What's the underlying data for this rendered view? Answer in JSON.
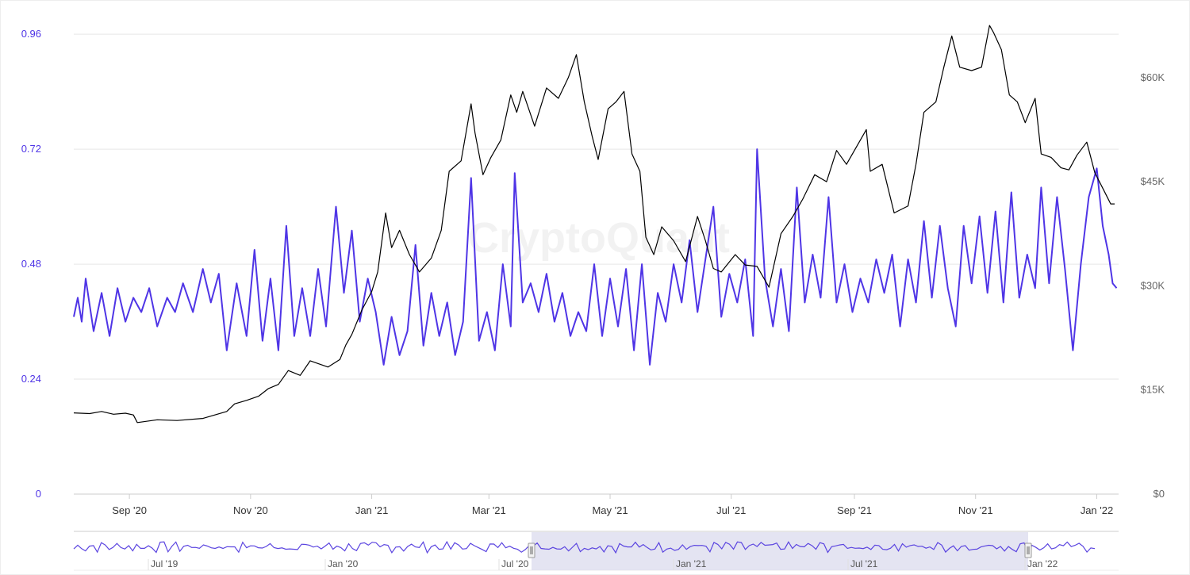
{
  "watermark": "CryptoQuant",
  "colors": {
    "ratio_line": "#4f35e6",
    "price_line": "#000000",
    "left_axis_text": "#4f35e6",
    "right_axis_text": "#666666",
    "grid": "#e6e6e6",
    "navigator_fill": "#d9d9ec",
    "navigator_line": "#5b45e0"
  },
  "chart_data": {
    "type": "line",
    "title": "",
    "xlabel": "",
    "y_left": {
      "range": [
        0,
        1.0
      ],
      "ticks": [
        "0",
        "0.24",
        "0.48",
        "0.72",
        "0.96"
      ],
      "tick_values": [
        0,
        0.24,
        0.48,
        0.72,
        0.96
      ]
    },
    "y_right": {
      "range": [
        0,
        69000
      ],
      "ticks": [
        "$0",
        "$15K",
        "$30K",
        "$45K",
        "$60K"
      ],
      "tick_values": [
        0,
        15000,
        30000,
        45000,
        60000
      ]
    },
    "x_range": [
      "2020-08-04",
      "2022-01-12"
    ],
    "x_ticks": [
      {
        "label": "Sep '20",
        "date": "2020-09-01"
      },
      {
        "label": "Nov '20",
        "date": "2020-11-01"
      },
      {
        "label": "Jan '21",
        "date": "2021-01-01"
      },
      {
        "label": "Mar '21",
        "date": "2021-03-01"
      },
      {
        "label": "May '21",
        "date": "2021-05-01"
      },
      {
        "label": "Jul '21",
        "date": "2021-07-01"
      },
      {
        "label": "Sep '21",
        "date": "2021-09-01"
      },
      {
        "label": "Nov '21",
        "date": "2021-11-01"
      },
      {
        "label": "Jan '22",
        "date": "2022-01-01"
      }
    ],
    "grid": true,
    "legend": "none",
    "series": [
      {
        "axis": "left",
        "points": [
          [
            "2020-08-04",
            0.37
          ],
          [
            "2020-08-06",
            0.41
          ],
          [
            "2020-08-08",
            0.36
          ],
          [
            "2020-08-10",
            0.45
          ],
          [
            "2020-08-14",
            0.34
          ],
          [
            "2020-08-18",
            0.42
          ],
          [
            "2020-08-22",
            0.33
          ],
          [
            "2020-08-26",
            0.43
          ],
          [
            "2020-08-30",
            0.36
          ],
          [
            "2020-09-03",
            0.41
          ],
          [
            "2020-09-07",
            0.38
          ],
          [
            "2020-09-11",
            0.43
          ],
          [
            "2020-09-15",
            0.35
          ],
          [
            "2020-09-20",
            0.41
          ],
          [
            "2020-09-24",
            0.38
          ],
          [
            "2020-09-28",
            0.44
          ],
          [
            "2020-10-03",
            0.38
          ],
          [
            "2020-10-08",
            0.47
          ],
          [
            "2020-10-12",
            0.4
          ],
          [
            "2020-10-16",
            0.46
          ],
          [
            "2020-10-20",
            0.3
          ],
          [
            "2020-10-25",
            0.44
          ],
          [
            "2020-10-30",
            0.33
          ],
          [
            "2020-11-03",
            0.51
          ],
          [
            "2020-11-07",
            0.32
          ],
          [
            "2020-11-11",
            0.45
          ],
          [
            "2020-11-15",
            0.3
          ],
          [
            "2020-11-19",
            0.56
          ],
          [
            "2020-11-23",
            0.33
          ],
          [
            "2020-11-27",
            0.43
          ],
          [
            "2020-12-01",
            0.33
          ],
          [
            "2020-12-05",
            0.47
          ],
          [
            "2020-12-09",
            0.35
          ],
          [
            "2020-12-14",
            0.6
          ],
          [
            "2020-12-18",
            0.42
          ],
          [
            "2020-12-22",
            0.55
          ],
          [
            "2020-12-26",
            0.36
          ],
          [
            "2020-12-30",
            0.45
          ],
          [
            "2021-01-03",
            0.38
          ],
          [
            "2021-01-07",
            0.27
          ],
          [
            "2021-01-11",
            0.37
          ],
          [
            "2021-01-15",
            0.29
          ],
          [
            "2021-01-19",
            0.34
          ],
          [
            "2021-01-23",
            0.52
          ],
          [
            "2021-01-27",
            0.31
          ],
          [
            "2021-01-31",
            0.42
          ],
          [
            "2021-02-04",
            0.33
          ],
          [
            "2021-02-08",
            0.4
          ],
          [
            "2021-02-12",
            0.29
          ],
          [
            "2021-02-16",
            0.36
          ],
          [
            "2021-02-20",
            0.66
          ],
          [
            "2021-02-24",
            0.32
          ],
          [
            "2021-02-28",
            0.38
          ],
          [
            "2021-03-04",
            0.3
          ],
          [
            "2021-03-08",
            0.48
          ],
          [
            "2021-03-12",
            0.35
          ],
          [
            "2021-03-14",
            0.67
          ],
          [
            "2021-03-18",
            0.4
          ],
          [
            "2021-03-22",
            0.44
          ],
          [
            "2021-03-26",
            0.38
          ],
          [
            "2021-03-30",
            0.46
          ],
          [
            "2021-04-03",
            0.36
          ],
          [
            "2021-04-07",
            0.42
          ],
          [
            "2021-04-11",
            0.33
          ],
          [
            "2021-04-15",
            0.38
          ],
          [
            "2021-04-19",
            0.34
          ],
          [
            "2021-04-23",
            0.48
          ],
          [
            "2021-04-27",
            0.33
          ],
          [
            "2021-05-01",
            0.45
          ],
          [
            "2021-05-05",
            0.35
          ],
          [
            "2021-05-09",
            0.47
          ],
          [
            "2021-05-13",
            0.3
          ],
          [
            "2021-05-17",
            0.48
          ],
          [
            "2021-05-21",
            0.27
          ],
          [
            "2021-05-25",
            0.42
          ],
          [
            "2021-05-29",
            0.36
          ],
          [
            "2021-06-02",
            0.48
          ],
          [
            "2021-06-06",
            0.4
          ],
          [
            "2021-06-10",
            0.53
          ],
          [
            "2021-06-14",
            0.38
          ],
          [
            "2021-06-18",
            0.49
          ],
          [
            "2021-06-22",
            0.6
          ],
          [
            "2021-06-26",
            0.37
          ],
          [
            "2021-06-30",
            0.46
          ],
          [
            "2021-07-04",
            0.4
          ],
          [
            "2021-07-08",
            0.49
          ],
          [
            "2021-07-12",
            0.33
          ],
          [
            "2021-07-14",
            0.72
          ],
          [
            "2021-07-18",
            0.45
          ],
          [
            "2021-07-22",
            0.35
          ],
          [
            "2021-07-26",
            0.47
          ],
          [
            "2021-07-30",
            0.34
          ],
          [
            "2021-08-03",
            0.64
          ],
          [
            "2021-08-07",
            0.4
          ],
          [
            "2021-08-11",
            0.5
          ],
          [
            "2021-08-15",
            0.41
          ],
          [
            "2021-08-19",
            0.62
          ],
          [
            "2021-08-23",
            0.4
          ],
          [
            "2021-08-27",
            0.48
          ],
          [
            "2021-08-31",
            0.38
          ],
          [
            "2021-09-04",
            0.45
          ],
          [
            "2021-09-08",
            0.4
          ],
          [
            "2021-09-12",
            0.49
          ],
          [
            "2021-09-16",
            0.42
          ],
          [
            "2021-09-20",
            0.5
          ],
          [
            "2021-09-24",
            0.35
          ],
          [
            "2021-09-28",
            0.49
          ],
          [
            "2021-10-02",
            0.4
          ],
          [
            "2021-10-06",
            0.57
          ],
          [
            "2021-10-10",
            0.41
          ],
          [
            "2021-10-14",
            0.56
          ],
          [
            "2021-10-18",
            0.43
          ],
          [
            "2021-10-22",
            0.35
          ],
          [
            "2021-10-26",
            0.56
          ],
          [
            "2021-10-30",
            0.44
          ],
          [
            "2021-11-03",
            0.58
          ],
          [
            "2021-11-07",
            0.42
          ],
          [
            "2021-11-11",
            0.59
          ],
          [
            "2021-11-15",
            0.4
          ],
          [
            "2021-11-19",
            0.63
          ],
          [
            "2021-11-23",
            0.41
          ],
          [
            "2021-11-27",
            0.5
          ],
          [
            "2021-12-01",
            0.43
          ],
          [
            "2021-12-04",
            0.64
          ],
          [
            "2021-12-08",
            0.44
          ],
          [
            "2021-12-12",
            0.62
          ],
          [
            "2021-12-16",
            0.47
          ],
          [
            "2021-12-20",
            0.3
          ],
          [
            "2021-12-24",
            0.48
          ],
          [
            "2021-12-28",
            0.62
          ],
          [
            "2022-01-01",
            0.68
          ],
          [
            "2022-01-04",
            0.56
          ],
          [
            "2022-01-07",
            0.5
          ],
          [
            "2022-01-09",
            0.44
          ],
          [
            "2022-01-11",
            0.43
          ]
        ]
      },
      {
        "axis": "right",
        "points": [
          [
            "2020-08-04",
            11700
          ],
          [
            "2020-08-12",
            11600
          ],
          [
            "2020-08-18",
            11900
          ],
          [
            "2020-08-24",
            11500
          ],
          [
            "2020-08-30",
            11650
          ],
          [
            "2020-09-03",
            11400
          ],
          [
            "2020-09-05",
            10300
          ],
          [
            "2020-09-15",
            10700
          ],
          [
            "2020-09-25",
            10600
          ],
          [
            "2020-10-08",
            10900
          ],
          [
            "2020-10-14",
            11400
          ],
          [
            "2020-10-20",
            11900
          ],
          [
            "2020-10-24",
            13000
          ],
          [
            "2020-10-30",
            13500
          ],
          [
            "2020-11-05",
            14100
          ],
          [
            "2020-11-10",
            15200
          ],
          [
            "2020-11-15",
            15800
          ],
          [
            "2020-11-20",
            17800
          ],
          [
            "2020-11-26",
            17100
          ],
          [
            "2020-12-01",
            19200
          ],
          [
            "2020-12-10",
            18300
          ],
          [
            "2020-12-16",
            19400
          ],
          [
            "2020-12-19",
            21500
          ],
          [
            "2020-12-22",
            23000
          ],
          [
            "2020-12-27",
            26500
          ],
          [
            "2021-01-01",
            29200
          ],
          [
            "2021-01-04",
            32000
          ],
          [
            "2021-01-08",
            40500
          ],
          [
            "2021-01-11",
            35500
          ],
          [
            "2021-01-15",
            38000
          ],
          [
            "2021-01-20",
            34500
          ],
          [
            "2021-01-25",
            32000
          ],
          [
            "2021-01-31",
            34000
          ],
          [
            "2021-02-05",
            38000
          ],
          [
            "2021-02-09",
            46500
          ],
          [
            "2021-02-15",
            48000
          ],
          [
            "2021-02-20",
            56200
          ],
          [
            "2021-02-22",
            52000
          ],
          [
            "2021-02-26",
            46000
          ],
          [
            "2021-03-02",
            48500
          ],
          [
            "2021-03-07",
            51000
          ],
          [
            "2021-03-12",
            57500
          ],
          [
            "2021-03-15",
            55000
          ],
          [
            "2021-03-18",
            58000
          ],
          [
            "2021-03-24",
            53000
          ],
          [
            "2021-03-30",
            58500
          ],
          [
            "2021-04-05",
            57000
          ],
          [
            "2021-04-10",
            60000
          ],
          [
            "2021-04-14",
            63300
          ],
          [
            "2021-04-18",
            56500
          ],
          [
            "2021-04-22",
            51500
          ],
          [
            "2021-04-25",
            48200
          ],
          [
            "2021-04-30",
            55500
          ],
          [
            "2021-05-04",
            56500
          ],
          [
            "2021-05-08",
            58000
          ],
          [
            "2021-05-12",
            49000
          ],
          [
            "2021-05-16",
            46500
          ],
          [
            "2021-05-19",
            37000
          ],
          [
            "2021-05-23",
            34500
          ],
          [
            "2021-05-27",
            38500
          ],
          [
            "2021-06-02",
            36500
          ],
          [
            "2021-06-08",
            33500
          ],
          [
            "2021-06-14",
            40000
          ],
          [
            "2021-06-18",
            36500
          ],
          [
            "2021-06-22",
            32500
          ],
          [
            "2021-06-26",
            32000
          ],
          [
            "2021-07-03",
            34500
          ],
          [
            "2021-07-08",
            33000
          ],
          [
            "2021-07-14",
            32800
          ],
          [
            "2021-07-20",
            29800
          ],
          [
            "2021-07-26",
            37500
          ],
          [
            "2021-08-01",
            40000
          ],
          [
            "2021-08-06",
            42500
          ],
          [
            "2021-08-12",
            46000
          ],
          [
            "2021-08-18",
            45000
          ],
          [
            "2021-08-23",
            49500
          ],
          [
            "2021-08-28",
            47500
          ],
          [
            "2021-09-03",
            50500
          ],
          [
            "2021-09-07",
            52500
          ],
          [
            "2021-09-09",
            46500
          ],
          [
            "2021-09-15",
            47500
          ],
          [
            "2021-09-21",
            40500
          ],
          [
            "2021-09-28",
            41500
          ],
          [
            "2021-10-02",
            47500
          ],
          [
            "2021-10-06",
            55000
          ],
          [
            "2021-10-12",
            56500
          ],
          [
            "2021-10-16",
            61500
          ],
          [
            "2021-10-20",
            66000
          ],
          [
            "2021-10-24",
            61500
          ],
          [
            "2021-10-30",
            61000
          ],
          [
            "2021-11-04",
            61500
          ],
          [
            "2021-11-08",
            67500
          ],
          [
            "2021-11-10",
            66500
          ],
          [
            "2021-11-14",
            64000
          ],
          [
            "2021-11-18",
            57500
          ],
          [
            "2021-11-22",
            56500
          ],
          [
            "2021-11-26",
            53500
          ],
          [
            "2021-12-01",
            57000
          ],
          [
            "2021-12-04",
            49000
          ],
          [
            "2021-12-09",
            48500
          ],
          [
            "2021-12-14",
            47000
          ],
          [
            "2021-12-18",
            46700
          ],
          [
            "2021-12-22",
            48800
          ],
          [
            "2021-12-27",
            50700
          ],
          [
            "2021-12-31",
            46300
          ],
          [
            "2022-01-05",
            43500
          ],
          [
            "2022-01-08",
            41800
          ],
          [
            "2022-01-10",
            41800
          ]
        ]
      }
    ]
  },
  "navigator": {
    "x_labels": [
      "Jul '19",
      "Jan '20",
      "Jul '20",
      "Jan '21",
      "Jul '21",
      "Jan '22"
    ],
    "range_start": "Jul '20",
    "range_end": "Jan '22"
  }
}
